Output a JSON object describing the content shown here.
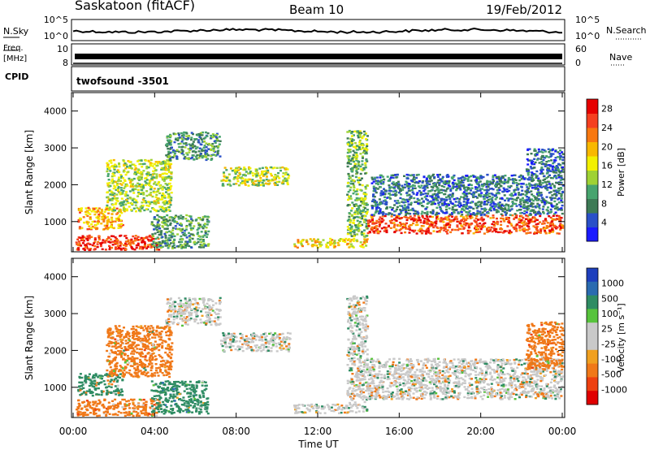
{
  "header": {
    "station": "Saskatoon (fitACF)",
    "beam": "Beam 10",
    "date": "19/Feb/2012"
  },
  "status_panel": {
    "nsky_label": "N.Sky",
    "nsky_ticks": [
      "10^5",
      "10^0"
    ],
    "nsearch_label": "N.Search",
    "freq_label_1": "Freq.",
    "freq_label_2": "[MHz]",
    "freq_ticks": [
      "10",
      "8"
    ],
    "nave_label": "Nave",
    "nave_ticks": [
      "60",
      "0"
    ],
    "cpid_label": "CPID",
    "cpid_value": "twofsound -3501"
  },
  "colors": {
    "power_scale": [
      "#1a1aff",
      "#2a50c8",
      "#3d7a55",
      "#47a46e",
      "#9fd234",
      "#f2f000",
      "#f8b800",
      "#f87810",
      "#f54020",
      "#e60000"
    ],
    "velocity_scale": [
      "#1e3fbd",
      "#2a6bb0",
      "#2e8c63",
      "#57c33c",
      "#c9c9c9",
      "#c9c9c9",
      "#f0a020",
      "#f07818",
      "#ee4010",
      "#e00000"
    ],
    "fill_gray": "#c9c9c9"
  },
  "chart_data": [
    {
      "type": "heatmap",
      "name": "Power panel",
      "xlabel": "Time UT",
      "ylabel": "Slant Range [km]",
      "x_ticks": [
        "00:00",
        "04:00",
        "08:00",
        "12:00",
        "16:00",
        "20:00",
        "00:00"
      ],
      "y_ticks": [
        1000,
        2000,
        3000,
        4000
      ],
      "xlim_hours": [
        0,
        24
      ],
      "ylim_km": [
        180,
        4500
      ],
      "colorbar_label": "Power [dB]",
      "colorbar_ticks": [
        4,
        8,
        12,
        16,
        20,
        24,
        28
      ],
      "colorbar_range": [
        0,
        30
      ],
      "regions": [
        {
          "t0": 0.1,
          "t1": 4.2,
          "r0": 250,
          "r1": 650,
          "level": 26
        },
        {
          "t0": 0.2,
          "t1": 2.4,
          "r0": 800,
          "r1": 1400,
          "level": 20
        },
        {
          "t0": 1.6,
          "t1": 4.8,
          "r0": 1300,
          "r1": 2700,
          "level": 14
        },
        {
          "t0": 3.8,
          "t1": 6.6,
          "r0": 300,
          "r1": 1200,
          "level": 10
        },
        {
          "t0": 4.5,
          "t1": 7.2,
          "r0": 2700,
          "r1": 3450,
          "level": 9
        },
        {
          "t0": 7.2,
          "t1": 10.6,
          "r0": 2000,
          "r1": 2500,
          "level": 15
        },
        {
          "t0": 10.8,
          "t1": 14.4,
          "r0": 320,
          "r1": 560,
          "level": 18
        },
        {
          "t0": 13.4,
          "t1": 14.4,
          "r0": 600,
          "r1": 3500,
          "level": 12
        },
        {
          "t0": 14.4,
          "t1": 24.0,
          "r0": 700,
          "r1": 1200,
          "level": 25
        },
        {
          "t0": 14.6,
          "t1": 24.0,
          "r0": 1200,
          "r1": 2300,
          "level": 7
        },
        {
          "t0": 22.2,
          "t1": 24.0,
          "r0": 2300,
          "r1": 3000,
          "level": 6
        }
      ]
    },
    {
      "type": "heatmap",
      "name": "Velocity panel",
      "xlabel": "Time UT",
      "ylabel": "Slant Range [km]",
      "x_ticks": [
        "00:00",
        "04:00",
        "08:00",
        "12:00",
        "16:00",
        "20:00",
        "00:00"
      ],
      "y_ticks": [
        1000,
        2000,
        3000,
        4000
      ],
      "xlim_hours": [
        0,
        24
      ],
      "ylim_km": [
        180,
        4500
      ],
      "colorbar_label": "Velocity [m s⁻¹]",
      "colorbar_ticks": [
        "1000",
        "500",
        "100",
        "25",
        "-25",
        "-100",
        "-500",
        "-1000"
      ],
      "regions": [
        {
          "t0": 0.1,
          "t1": 4.2,
          "r0": 250,
          "r1": 700,
          "level": -150
        },
        {
          "t0": 0.2,
          "t1": 2.4,
          "r0": 800,
          "r1": 1400,
          "level": 80
        },
        {
          "t0": 1.6,
          "t1": 4.8,
          "r0": 1300,
          "r1": 2700,
          "level": -120
        },
        {
          "t0": 3.8,
          "t1": 6.6,
          "r0": 300,
          "r1": 1200,
          "level": 150
        },
        {
          "t0": 4.5,
          "t1": 7.2,
          "r0": 2700,
          "r1": 3450,
          "level": 0
        },
        {
          "t0": 7.2,
          "t1": 10.6,
          "r0": 2000,
          "r1": 2500,
          "level": 0
        },
        {
          "t0": 10.8,
          "t1": 14.4,
          "r0": 320,
          "r1": 560,
          "level": 0
        },
        {
          "t0": 13.4,
          "t1": 14.4,
          "r0": 600,
          "r1": 3500,
          "level": 0
        },
        {
          "t0": 14.4,
          "t1": 24.0,
          "r0": 700,
          "r1": 1800,
          "level": 0
        },
        {
          "t0": 22.2,
          "t1": 24.0,
          "r0": 1500,
          "r1": 2800,
          "level": -150
        }
      ]
    }
  ]
}
